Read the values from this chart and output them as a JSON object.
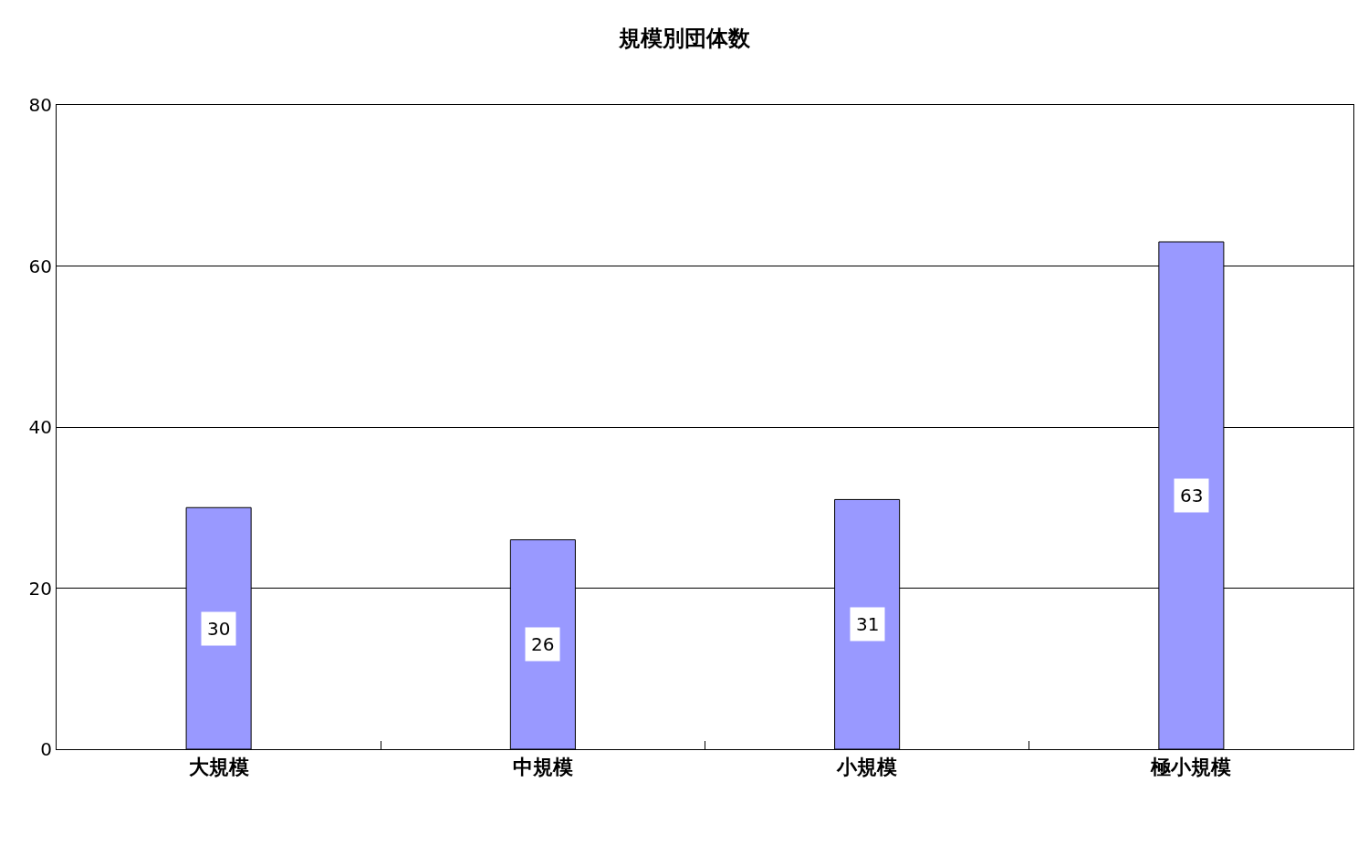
{
  "chart_data": {
    "type": "bar",
    "title": "規模別団体数",
    "categories": [
      "大規模",
      "中規模",
      "小規模",
      "極小規模"
    ],
    "values": [
      30,
      26,
      31,
      63
    ],
    "color": "#9999ff",
    "ylim": [
      0,
      80
    ],
    "yticks": [
      0,
      20,
      40,
      60,
      80
    ],
    "grid": "y",
    "data_labels": true
  }
}
